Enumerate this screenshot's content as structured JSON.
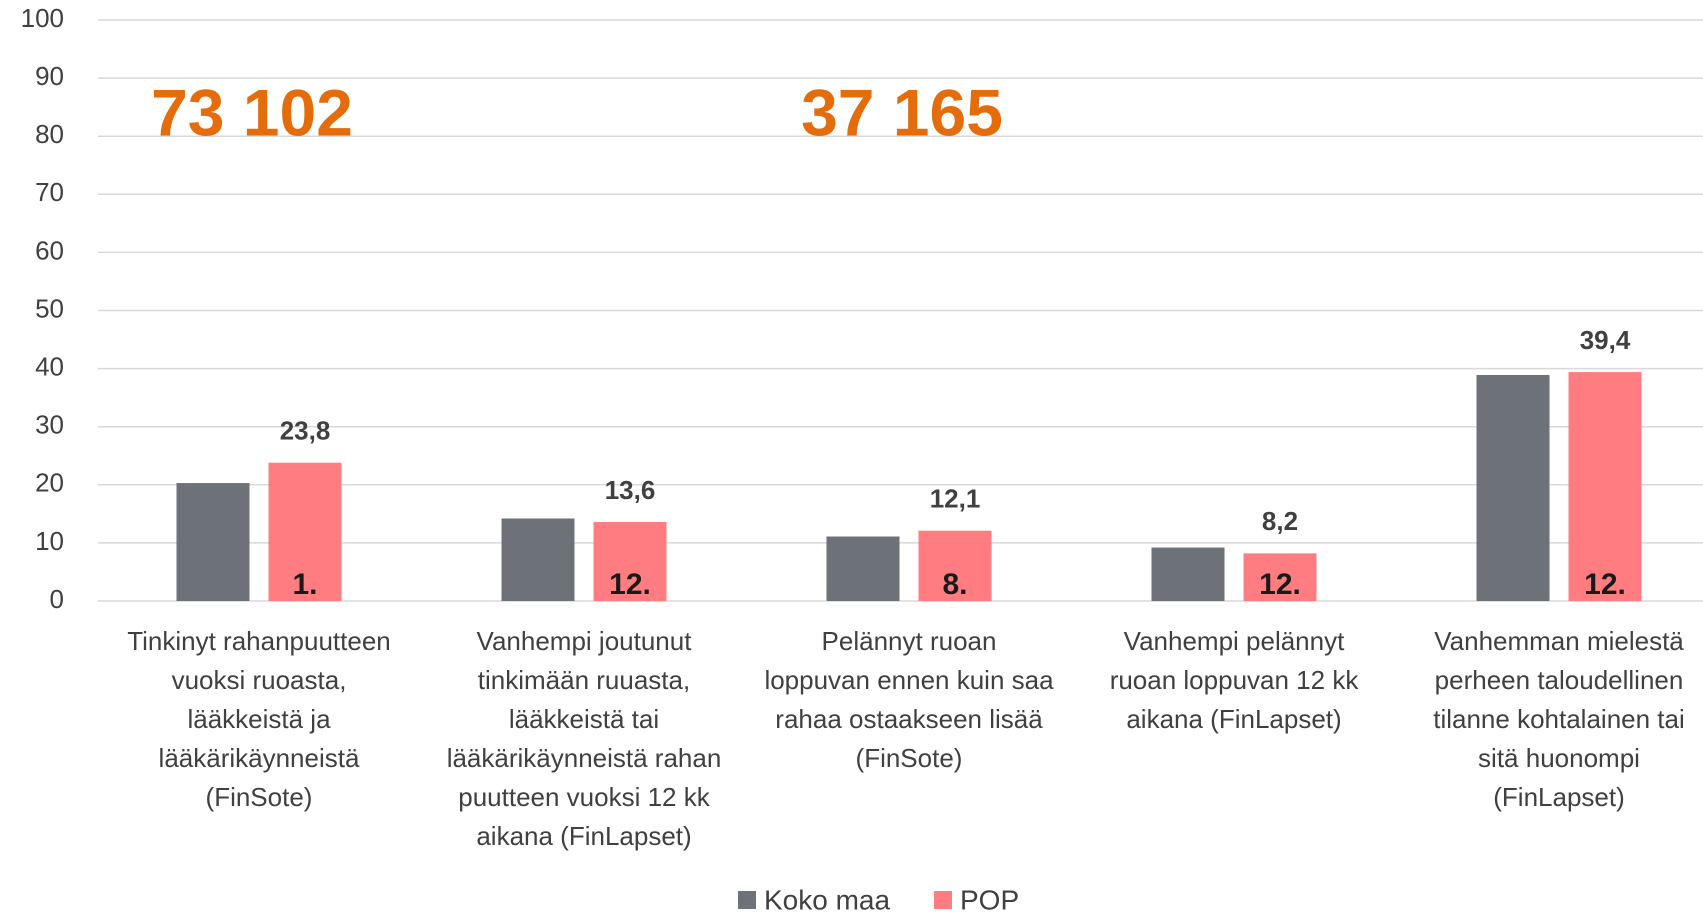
{
  "chart_data": {
    "type": "bar",
    "categories": [
      [
        "Tinkinyt rahanpuutteen",
        "vuoksi ruoasta,",
        "lääkkeistä ja",
        "lääkärikäynneistä",
        "(FinSote)"
      ],
      [
        "Vanhempi joutunut",
        "tinkimään ruuasta,",
        "lääkkeistä tai",
        "lääkärikäynneistä rahan",
        "puutteen vuoksi 12 kk",
        "aikana (FinLapset)"
      ],
      [
        "Pelännyt ruoan",
        "loppuvan ennen kuin saa",
        "rahaa ostaakseen lisää",
        "(FinSote)"
      ],
      [
        "Vanhempi pelännyt",
        "ruoan loppuvan 12 kk",
        "aikana (FinLapset)"
      ],
      [
        "Vanhemman mielestä",
        "perheen taloudellinen",
        "tilanne kohtalainen tai",
        "sitä huonompi",
        "(FinLapset)"
      ]
    ],
    "series": [
      {
        "name": "Koko maa",
        "color": "#6d7178",
        "values": [
          20.3,
          14.2,
          11.1,
          9.2,
          38.9
        ]
      },
      {
        "name": "POP",
        "color": "#ff7c80",
        "values": [
          23.8,
          13.6,
          12.1,
          8.2,
          39.4
        ],
        "value_labels": [
          "23,8",
          "13,6",
          "12,1",
          "8,2",
          "39,4"
        ],
        "rank_labels": [
          "1.",
          "12.",
          "8.",
          "12.",
          "12."
        ]
      }
    ],
    "annotations": [
      "73 102",
      "37 165"
    ],
    "annotation_color": "#e46c0a",
    "ylim": [
      0,
      100
    ],
    "yticks": [
      0,
      10,
      20,
      30,
      40,
      50,
      60,
      70,
      80,
      90,
      100
    ],
    "grid": true
  }
}
